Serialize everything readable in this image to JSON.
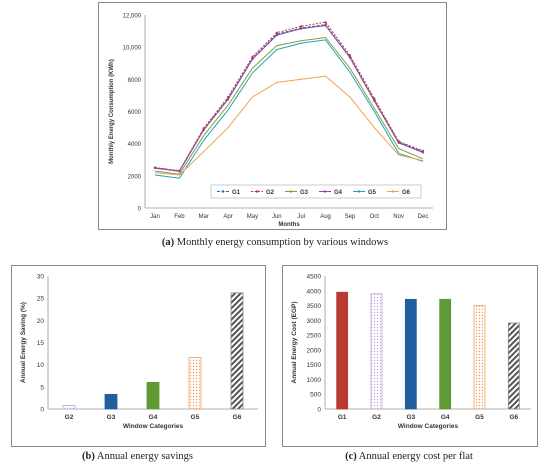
{
  "captions": {
    "a_letter": "(a)",
    "a_text": " Monthly energy consumption by various windows",
    "b_letter": "(b)",
    "b_text": " Annual energy savings",
    "c_letter": "(c)",
    "c_text": " Annual energy cost per flat"
  },
  "chart_data": [
    {
      "type": "line",
      "title": "",
      "xlabel": "Months",
      "ylabel": "Monthly Energy Consumption  (KWh)",
      "categories": [
        "Jan",
        "Feb",
        "Mar",
        "Apr",
        "May",
        "Jun",
        "Jul",
        "Aug",
        "Sep",
        "Oct",
        "Nov",
        "Dec"
      ],
      "ylim": [
        0,
        12000
      ],
      "yticks": [
        "0",
        "2000",
        "4000",
        "6000",
        "8000",
        "10,000",
        "12,000"
      ],
      "ytick_values": [
        0,
        2000,
        4000,
        6000,
        8000,
        10000,
        12000
      ],
      "legend_position": "bottom",
      "series": [
        {
          "name": "G1",
          "color": "#1f6fb5",
          "values": [
            2500,
            2300,
            4900,
            6800,
            9300,
            10800,
            11200,
            11400,
            9400,
            6700,
            4100,
            3500
          ]
        },
        {
          "name": "G2",
          "color": "#c0392b",
          "values": [
            2520,
            2320,
            4950,
            6900,
            9400,
            10900,
            11300,
            11550,
            9500,
            6800,
            4150,
            3550
          ]
        },
        {
          "name": "G3",
          "color": "#7aa33a",
          "values": [
            2300,
            2100,
            4500,
            6400,
            8700,
            10100,
            10400,
            10600,
            8700,
            6200,
            3700,
            3050
          ]
        },
        {
          "name": "G4",
          "color": "#8e44ad",
          "values": [
            2480,
            2280,
            4850,
            6750,
            9250,
            10750,
            11150,
            11350,
            9350,
            6650,
            4050,
            3450
          ]
        },
        {
          "name": "G5",
          "color": "#2aa0b8",
          "values": [
            2050,
            1850,
            4200,
            6100,
            8400,
            9850,
            10250,
            10450,
            8450,
            6000,
            3400,
            2900
          ]
        },
        {
          "name": "G6",
          "color": "#f0a050",
          "values": [
            2200,
            2050,
            3500,
            5000,
            6900,
            7800,
            8000,
            8200,
            6900,
            5000,
            3300,
            2950
          ]
        }
      ]
    },
    {
      "type": "bar",
      "title": "",
      "xlabel": "Window Categories",
      "ylabel": "Annual Energy Saving (%)",
      "categories": [
        "G2",
        "G3",
        "G4",
        "G5",
        "G6"
      ],
      "values": [
        0.8,
        3.3,
        6.0,
        11.6,
        26.2
      ],
      "colors": [
        "#c3a6d9",
        "#1f5fa0",
        "#5f9a35",
        "#f0a060",
        "#888888"
      ],
      "ylim": [
        0,
        30
      ],
      "yticks": [
        "0",
        "5",
        "10",
        "15",
        "20",
        "25",
        "30"
      ],
      "ytick_values": [
        0,
        5,
        10,
        15,
        20,
        25,
        30
      ]
    },
    {
      "type": "bar",
      "title": "",
      "xlabel": "Window Categories",
      "ylabel": "Annual Energy Cost (EGP)",
      "categories": [
        "G1",
        "G2",
        "G3",
        "G4",
        "G5",
        "G6"
      ],
      "values": [
        3950,
        3900,
        3710,
        3710,
        3500,
        2910
      ],
      "colors": [
        "#b83a32",
        "#c3a6d9",
        "#1f5fa0",
        "#5f9a35",
        "#f0a060",
        "#888888"
      ],
      "ylim": [
        0,
        4500
      ],
      "yticks": [
        "0",
        "500",
        "1000",
        "1500",
        "2000",
        "2500",
        "3000",
        "3500",
        "4000",
        "4500"
      ],
      "ytick_values": [
        0,
        500,
        1000,
        1500,
        2000,
        2500,
        3000,
        3500,
        4000,
        4500
      ]
    }
  ]
}
